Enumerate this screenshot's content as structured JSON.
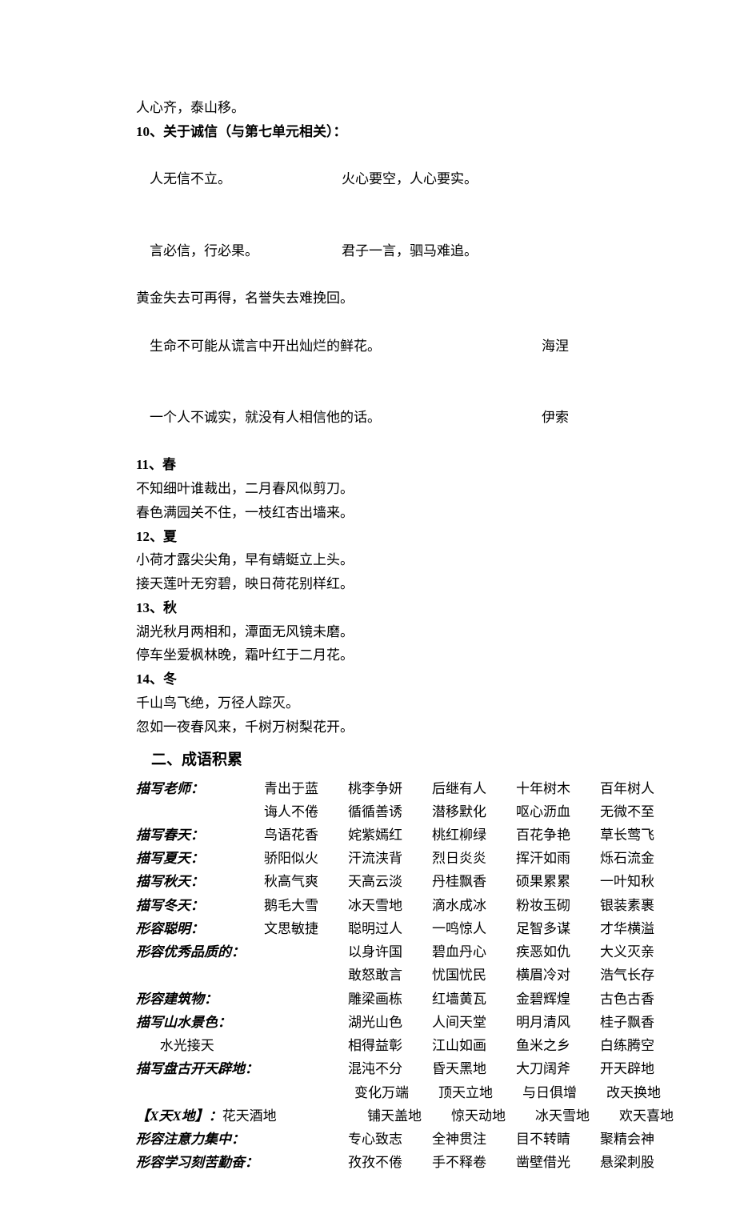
{
  "top_lines": [
    "人心齐，泰山移。"
  ],
  "section10": {
    "heading": "10、关于诚信（与第七单元相关）：",
    "rows": [
      {
        "left": "人无信不立。",
        "right": "火心要空，人心要实。"
      },
      {
        "left": "言必信，行必果。",
        "right": "君子一言，驷马难追。"
      }
    ],
    "single_lines": [
      "黄金失去可再得，名誉失去难挽回。"
    ],
    "authored": [
      {
        "text": "生命不可能从谎言中开出灿烂的鲜花。",
        "author": "海涅"
      },
      {
        "text": "一个人不诚实，就没有人相信他的话。",
        "author": "伊索"
      }
    ]
  },
  "seasons": [
    {
      "heading": "11、春",
      "lines": [
        "不知细叶谁裁出，二月春风似剪刀。",
        "春色满园关不住，一枝红杏出墙来。"
      ]
    },
    {
      "heading": "12、夏",
      "lines": [
        "小荷才露尖尖角，早有蜻蜓立上头。",
        "接天莲叶无穷碧，映日荷花别样红。"
      ]
    },
    {
      "heading": "13、秋",
      "lines": [
        "湖光秋月两相和，潭面无风镜未磨。",
        "停车坐爱枫林晚，霜叶红于二月花。"
      ]
    },
    {
      "heading": "14、冬",
      "lines": [
        "千山鸟飞绝，万径人踪灭。",
        "忽如一夜春风来，千树万树梨花开。"
      ]
    }
  ],
  "idiom_section_heading": "二、成语积累",
  "idiom_rows": [
    {
      "label": "描写老师：",
      "label_style": "italic",
      "cells": [
        "青出于蓝",
        "桃李争妍",
        "后继有人",
        "十年树木",
        "百年树人"
      ]
    },
    {
      "label": "",
      "label_style": "italic",
      "cells": [
        "诲人不倦",
        "循循善诱",
        "潜移默化",
        "呕心沥血",
        "无微不至"
      ]
    },
    {
      "label": "描写春天：",
      "label_style": "italic",
      "cells": [
        "鸟语花香",
        "姹紫嫣红",
        "桃红柳绿",
        "百花争艳",
        "草长莺飞"
      ]
    },
    {
      "label": "描写夏天：",
      "label_style": "italic",
      "cells": [
        "骄阳似火",
        "汗流浃背",
        "烈日炎炎",
        "挥汗如雨",
        "烁石流金"
      ]
    },
    {
      "label": "描写秋天：",
      "label_style": "italic",
      "cells": [
        "秋高气爽",
        "天高云淡",
        "丹桂飘香",
        "硕果累累",
        "一叶知秋"
      ]
    },
    {
      "label": "描写冬天：",
      "label_style": "italic",
      "cells": [
        "鹅毛大雪",
        "冰天雪地",
        "滴水成冰",
        "粉妆玉砌",
        "银装素裹"
      ]
    },
    {
      "label": "形容聪明：",
      "label_style": "italic",
      "cells": [
        "文思敏捷",
        "聪明过人",
        "一鸣惊人",
        "足智多谋",
        "才华横溢"
      ]
    },
    {
      "label": "形容优秀品质的：",
      "label_style": "italic",
      "cells": [
        "",
        "以身许国",
        "碧血丹心",
        "疾恶如仇",
        "大义灭亲"
      ]
    },
    {
      "label": "",
      "label_style": "italic",
      "cells": [
        "",
        "敢怒敢言",
        "忧国忧民",
        "横眉冷对",
        "浩气长存"
      ]
    },
    {
      "label": "形容建筑物：",
      "label_style": "italic",
      "cells": [
        "",
        "雕梁画栋",
        "红墙黄瓦",
        "金碧辉煌",
        "古色古香"
      ]
    },
    {
      "label": "描写山水景色：",
      "label_style": "italic",
      "cells": [
        "",
        "湖光山色",
        "人间天堂",
        "明月清风",
        "桂子飘香"
      ]
    },
    {
      "label": "       水光接天",
      "label_style": "noitalic",
      "cells": [
        "",
        "相得益彰",
        "江山如画",
        "鱼米之乡",
        "白练腾空"
      ]
    },
    {
      "label": "描写盘古开天辟地：",
      "label_style": "italic",
      "cells": [
        "",
        "混沌不分",
        "昏天黑地",
        "大刀阔斧",
        "开天辟地"
      ]
    },
    {
      "label": "",
      "label_style": "italic",
      "cells": [
        "",
        "变化万端",
        "顶天立地",
        "与日俱增",
        "改天换地"
      ],
      "indent": true
    },
    {
      "label": "【X天X地】",
      "label_style": "bracket",
      "after_label": "花天酒地",
      "cells": [
        "",
        "铺天盖地",
        "惊天动地",
        "冰天雪地",
        "欢天喜地"
      ],
      "indent": true
    },
    {
      "label": "形容注意力集中：",
      "label_style": "italic",
      "cells": [
        "",
        "专心致志",
        "全神贯注",
        "目不转睛",
        "聚精会神"
      ]
    },
    {
      "label": "形容学习刻苦勤奋：",
      "label_style": "italic",
      "cells": [
        "",
        "孜孜不倦",
        "手不释卷",
        "凿壁借光",
        "悬梁刺股"
      ]
    }
  ]
}
